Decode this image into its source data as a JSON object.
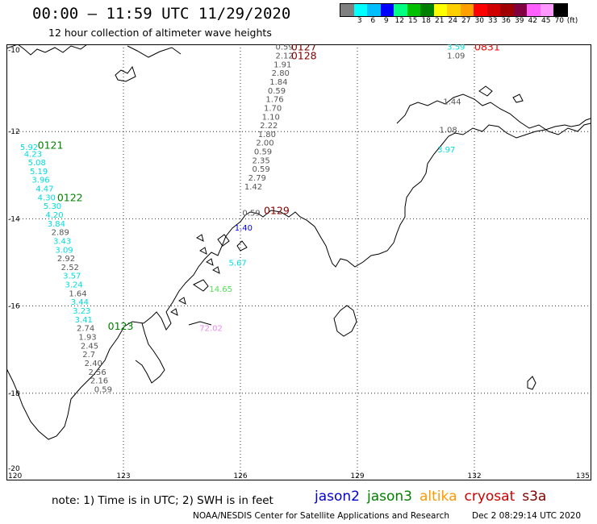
{
  "header": {
    "title": "00:00 – 11:59 UTC 11/29/2020",
    "subtitle": "12 hour collection of altimeter wave heights"
  },
  "colorbar": {
    "unit": "(ft)",
    "levels": [
      {
        "label": "",
        "color": "#808080"
      },
      {
        "label": "3",
        "color": "#00ffff"
      },
      {
        "label": "6",
        "color": "#00bfff"
      },
      {
        "label": "9",
        "color": "#0000ff"
      },
      {
        "label": "12",
        "color": "#00ff80"
      },
      {
        "label": "15",
        "color": "#00c000"
      },
      {
        "label": "18",
        "color": "#008000"
      },
      {
        "label": "21",
        "color": "#ffff00"
      },
      {
        "label": "24",
        "color": "#ffd000"
      },
      {
        "label": "27",
        "color": "#ffa000"
      },
      {
        "label": "30",
        "color": "#ff0000"
      },
      {
        "label": "33",
        "color": "#d00000"
      },
      {
        "label": "36",
        "color": "#a00000"
      },
      {
        "label": "39",
        "color": "#800040"
      },
      {
        "label": "42",
        "color": "#ff60ff"
      },
      {
        "label": "45",
        "color": "#ff99ff"
      },
      {
        "label": "70",
        "color": "#000000"
      }
    ]
  },
  "map": {
    "lon_range": [
      120,
      135
    ],
    "lat_range": [
      -20,
      -10
    ],
    "lat_labels": [
      "-10",
      "-12",
      "-14",
      "-16",
      "-18",
      "-20"
    ],
    "lon_labels": [
      "120",
      "123",
      "126",
      "129",
      "132",
      "135"
    ],
    "coast_color": "#000000",
    "grid_style": "dotted",
    "pass_labels": [
      {
        "text": "0127",
        "color": "#800000",
        "lon": 127.3,
        "lat": -10.05
      },
      {
        "text": "0128",
        "color": "#800000",
        "lon": 127.3,
        "lat": -10.25
      },
      {
        "text": "0831",
        "color": "#ff0000",
        "lon": 132.0,
        "lat": -10.05
      },
      {
        "text": "0121",
        "color": "#008000",
        "lon": 120.8,
        "lat": -12.3
      },
      {
        "text": "0122",
        "color": "#008000",
        "lon": 121.3,
        "lat": -13.5
      },
      {
        "text": "0129",
        "color": "#800000",
        "lon": 126.6,
        "lat": -13.8
      },
      {
        "text": "0123",
        "color": "#008000",
        "lon": 122.6,
        "lat": -16.45
      }
    ],
    "track_jason3": {
      "color_cyan": "#00dddd",
      "color_gray": "#555555",
      "points": [
        {
          "v": "5.92",
          "c": "cyan",
          "lon": 120.35,
          "lat": -12.35
        },
        {
          "v": "4.23",
          "c": "cyan",
          "lon": 120.45,
          "lat": -12.5
        },
        {
          "v": "5.08",
          "c": "cyan",
          "lon": 120.55,
          "lat": -12.7
        },
        {
          "v": "5.19",
          "c": "cyan",
          "lon": 120.6,
          "lat": -12.9
        },
        {
          "v": "3.96",
          "c": "cyan",
          "lon": 120.65,
          "lat": -13.1
        },
        {
          "v": "4.47",
          "c": "cyan",
          "lon": 120.75,
          "lat": -13.3
        },
        {
          "v": "4.30",
          "c": "cyan",
          "lon": 120.8,
          "lat": -13.5
        },
        {
          "v": "5.30",
          "c": "cyan",
          "lon": 120.95,
          "lat": -13.7
        },
        {
          "v": "4.20",
          "c": "cyan",
          "lon": 121.0,
          "lat": -13.9
        },
        {
          "v": "3.84",
          "c": "cyan",
          "lon": 121.05,
          "lat": -14.1
        },
        {
          "v": "2.89",
          "c": "gray",
          "lon": 121.15,
          "lat": -14.3
        },
        {
          "v": "3.43",
          "c": "cyan",
          "lon": 121.2,
          "lat": -14.5
        },
        {
          "v": "3.09",
          "c": "cyan",
          "lon": 121.25,
          "lat": -14.7
        },
        {
          "v": "2.92",
          "c": "gray",
          "lon": 121.3,
          "lat": -14.9
        },
        {
          "v": "2.52",
          "c": "gray",
          "lon": 121.4,
          "lat": -15.1
        },
        {
          "v": "3.57",
          "c": "cyan",
          "lon": 121.45,
          "lat": -15.3
        },
        {
          "v": "3.24",
          "c": "cyan",
          "lon": 121.5,
          "lat": -15.5
        },
        {
          "v": "1.64",
          "c": "gray",
          "lon": 121.6,
          "lat": -15.7
        },
        {
          "v": "3.44",
          "c": "cyan",
          "lon": 121.65,
          "lat": -15.9
        },
        {
          "v": "3.23",
          "c": "cyan",
          "lon": 121.7,
          "lat": -16.1
        },
        {
          "v": "3.41",
          "c": "cyan",
          "lon": 121.75,
          "lat": -16.3
        },
        {
          "v": "2.74",
          "c": "gray",
          "lon": 121.8,
          "lat": -16.5
        },
        {
          "v": "1.93",
          "c": "gray",
          "lon": 121.85,
          "lat": -16.7
        },
        {
          "v": "2.45",
          "c": "gray",
          "lon": 121.9,
          "lat": -16.9
        },
        {
          "v": "2.7",
          "c": "gray",
          "lon": 121.95,
          "lat": -17.1
        },
        {
          "v": "2.40",
          "c": "gray",
          "lon": 122.0,
          "lat": -17.3
        },
        {
          "v": "2.56",
          "c": "gray",
          "lon": 122.1,
          "lat": -17.5
        },
        {
          "v": "2.16",
          "c": "gray",
          "lon": 122.15,
          "lat": -17.7
        },
        {
          "v": "0.59",
          "c": "gray",
          "lon": 122.25,
          "lat": -17.9
        }
      ]
    },
    "track_cryosat": {
      "points": [
        {
          "v": "0.59",
          "c": "gray",
          "lon": 126.9,
          "lat": -10.05
        },
        {
          "v": "2.12",
          "c": "gray",
          "lon": 126.9,
          "lat": -10.25
        },
        {
          "v": "1.91",
          "c": "gray",
          "lon": 126.85,
          "lat": -10.45
        },
        {
          "v": "2.80",
          "c": "gray",
          "lon": 126.8,
          "lat": -10.65
        },
        {
          "v": "1.84",
          "c": "gray",
          "lon": 126.75,
          "lat": -10.85
        },
        {
          "v": "0.59",
          "c": "gray",
          "lon": 126.7,
          "lat": -11.05
        },
        {
          "v": "1.76",
          "c": "gray",
          "lon": 126.65,
          "lat": -11.25
        },
        {
          "v": "1.70",
          "c": "gray",
          "lon": 126.6,
          "lat": -11.45
        },
        {
          "v": "1.10",
          "c": "gray",
          "lon": 126.55,
          "lat": -11.65
        },
        {
          "v": "2.22",
          "c": "gray",
          "lon": 126.5,
          "lat": -11.85
        },
        {
          "v": "1.80",
          "c": "gray",
          "lon": 126.45,
          "lat": -12.05
        },
        {
          "v": "2.00",
          "c": "gray",
          "lon": 126.4,
          "lat": -12.25
        },
        {
          "v": "0.59",
          "c": "gray",
          "lon": 126.35,
          "lat": -12.45
        },
        {
          "v": "2.35",
          "c": "gray",
          "lon": 126.3,
          "lat": -12.65
        },
        {
          "v": "0.59",
          "c": "gray",
          "lon": 126.3,
          "lat": -12.85
        },
        {
          "v": "2.79",
          "c": "gray",
          "lon": 126.2,
          "lat": -13.05
        },
        {
          "v": "1.42",
          "c": "gray",
          "lon": 126.1,
          "lat": -13.25
        },
        {
          "v": "0.59",
          "c": "gray",
          "lon": 126.05,
          "lat": -13.85
        }
      ]
    },
    "extra_values": [
      {
        "v": "3.59",
        "c": "cyan",
        "lon": 131.3,
        "lat": -10.05
      },
      {
        "v": "1.09",
        "c": "gray",
        "lon": 131.3,
        "lat": -10.25
      },
      {
        "v": "1.44",
        "c": "gray",
        "lon": 131.2,
        "lat": -11.3
      },
      {
        "v": "1.08",
        "c": "gray",
        "lon": 131.1,
        "lat": -11.95
      },
      {
        "v": "3.97",
        "c": "cyan",
        "lon": 131.05,
        "lat": -12.4
      },
      {
        "v": "1.40",
        "c": "blue",
        "lon": 125.85,
        "lat": -14.2
      },
      {
        "v": "5.67",
        "c": "cyan",
        "lon": 125.7,
        "lat": -15.0
      },
      {
        "v": "14.65",
        "c": "green",
        "lon": 125.2,
        "lat": -15.6
      },
      {
        "v": "72.02",
        "c": "pink",
        "lon": 124.95,
        "lat": -16.5
      }
    ],
    "value_colors": {
      "cyan": "#00dddd",
      "gray": "#555555",
      "blue": "#0000ff",
      "green": "#55dd55",
      "pink": "#ee88ee"
    }
  },
  "footer": {
    "note": "note: 1) Time is in UTC; 2) SWH is in feet",
    "satellites": [
      {
        "name": "jason2",
        "color": "#0000cc"
      },
      {
        "name": "jason3",
        "color": "#008000"
      },
      {
        "name": "altika",
        "color": "#ff9900"
      },
      {
        "name": "cryosat",
        "color": "#cc0000"
      },
      {
        "name": "s3a",
        "color": "#800000"
      }
    ],
    "credit_org": "NOAA/NESDIS Center for Satellite Applications and Research",
    "credit_time": "Dec  2 08:29:14 UTC 2020"
  }
}
